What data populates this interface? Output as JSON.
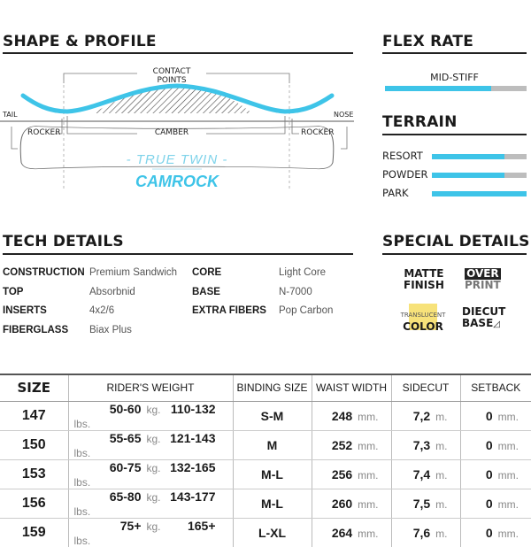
{
  "shape": {
    "title": "SHAPE & PROFILE",
    "contact_points": "CONTACT POINTS",
    "tail": "TAIL",
    "nose": "NOSE",
    "rocker_left": "ROCKER",
    "camber": "CAMBER",
    "rocker_right": "ROCKER",
    "shape_name": "- TRUE TWIN -",
    "profile_name": "CAMROCK"
  },
  "flex": {
    "title": "FLEX RATE",
    "label": "MID-STIFF",
    "level": 0.75
  },
  "terrain": {
    "title": "TERRAIN",
    "items": [
      {
        "label": "RESORT",
        "level": 0.77
      },
      {
        "label": "POWDER",
        "level": 0.77
      },
      {
        "label": "PARK",
        "level": 1.0
      }
    ]
  },
  "tech": {
    "title": "TECH DETAILS",
    "rows": [
      {
        "k1": "CONSTRUCTION",
        "v1": "Premium Sandwich",
        "k2": "CORE",
        "v2": "Light Core"
      },
      {
        "k1": "TOP",
        "v1": "Absorbnid",
        "k2": "BASE",
        "v2": "N-7000"
      },
      {
        "k1": "INSERTS",
        "v1": "4x2/6",
        "k2": "EXTRA FIBERS",
        "v2": "Pop Carbon"
      },
      {
        "k1": "FIBERGLASS",
        "v1": "Biax Plus",
        "k2": "",
        "v2": ""
      }
    ]
  },
  "special": {
    "title": "SPECIAL DETAILS",
    "matte": [
      "MATTE",
      "FINISH"
    ],
    "over": [
      "OVER",
      "PRINT"
    ],
    "translucent": [
      "TRANSLUCENT",
      "COLOR"
    ],
    "diecut": [
      "DIECUT",
      "BASE"
    ]
  },
  "colors": {
    "accent": "#3ec4e8",
    "bar_bg": "#bdbdbd",
    "highlight": "#f7e27a"
  },
  "table": {
    "headers": [
      "SIZE",
      "RIDER'S WEIGHT",
      "BINDING SIZE",
      "WAIST WIDTH",
      "SIDECUT",
      "SETBACK"
    ],
    "units": {
      "kg": "kg.",
      "lbs": "lbs.",
      "mm": "mm.",
      "m": "m."
    },
    "rows": [
      {
        "size": "147",
        "kg": "50-60",
        "lbs": "110-132",
        "binding": "S-M",
        "waist": "248",
        "sidecut": "7,2",
        "setback": "0"
      },
      {
        "size": "150",
        "kg": "55-65",
        "lbs": "121-143",
        "binding": "M",
        "waist": "252",
        "sidecut": "7,3",
        "setback": "0"
      },
      {
        "size": "153",
        "kg": "60-75",
        "lbs": "132-165",
        "binding": "M-L",
        "waist": "256",
        "sidecut": "7,4",
        "setback": "0"
      },
      {
        "size": "156",
        "kg": "65-80",
        "lbs": "143-177",
        "binding": "M-L",
        "waist": "260",
        "sidecut": "7,5",
        "setback": "0"
      },
      {
        "size": "159",
        "kg": "75+",
        "lbs": "165+",
        "binding": "L-XL",
        "waist": "264",
        "sidecut": "7,6",
        "setback": "0"
      }
    ]
  }
}
